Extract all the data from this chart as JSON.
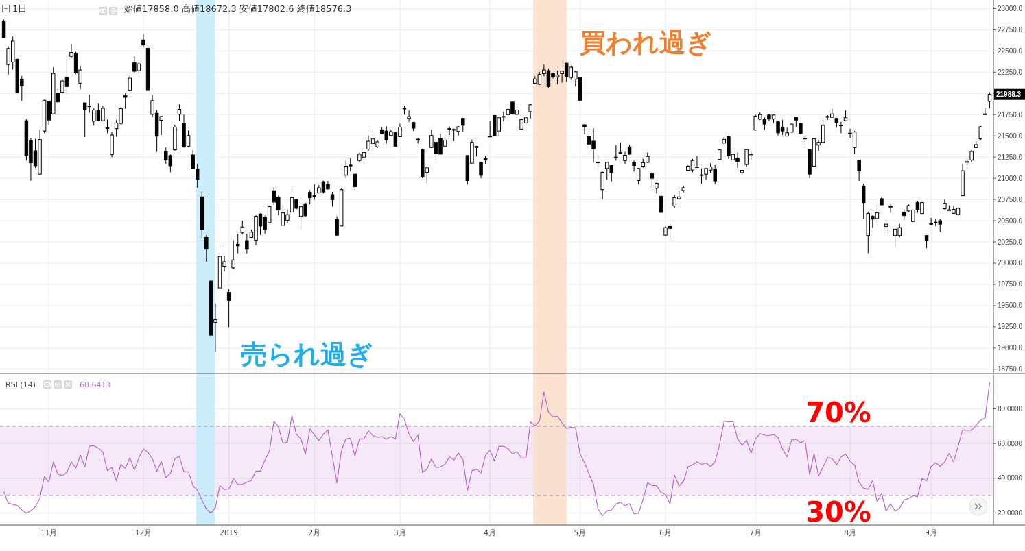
{
  "chart_data": [
    {
      "type": "candlestick",
      "title": "1日",
      "subtitle": "始値17858.0 高値18672.3 安値17802.6 終値18576.3",
      "categories": [
        null,
        null,
        null,
        null,
        null,
        null,
        null,
        null,
        null,
        null,
        null,
        null,
        null,
        null,
        null,
        null,
        null,
        null,
        null,
        null,
        null,
        null,
        null,
        null,
        null,
        null,
        null,
        null,
        null,
        null,
        null,
        null,
        null,
        null,
        null,
        null,
        null,
        null,
        null,
        null,
        null,
        null,
        null,
        null,
        null,
        null,
        null,
        null,
        null,
        null,
        null,
        null,
        null,
        null,
        null,
        null,
        null,
        null,
        null,
        null,
        null,
        null,
        null,
        null,
        null,
        null,
        null,
        null,
        null,
        null,
        null,
        null,
        null,
        null,
        null,
        null,
        null,
        null,
        null,
        null,
        null,
        null,
        null,
        null,
        null,
        null,
        null,
        null,
        null,
        null,
        null,
        null,
        null,
        null,
        null,
        null,
        null,
        null,
        null,
        null,
        null,
        null,
        null,
        null,
        null,
        null,
        null,
        null,
        null,
        null,
        null,
        null,
        null,
        null,
        null,
        null,
        null,
        null,
        null,
        null,
        null,
        null,
        null,
        null,
        null,
        null,
        null,
        null,
        null,
        null,
        null,
        null,
        null,
        null,
        null,
        null,
        null,
        null,
        null,
        null,
        null,
        null,
        null,
        null,
        null,
        null,
        null,
        null,
        null,
        null,
        null,
        null,
        null,
        null,
        null,
        null,
        null,
        null,
        null,
        null,
        null,
        null,
        null,
        null,
        null,
        null,
        null,
        null,
        null,
        null,
        null,
        null,
        null,
        null,
        null,
        null,
        null,
        null,
        null,
        null,
        null,
        null,
        null,
        null,
        null,
        null,
        null,
        null,
        null,
        null,
        null,
        null,
        null,
        null,
        null,
        null,
        null,
        null,
        null,
        null,
        null,
        null,
        null,
        null,
        null,
        null,
        null,
        null,
        null,
        null,
        null,
        null,
        null,
        null,
        null,
        null,
        null,
        null,
        null,
        null
      ],
      "ohlc": [
        [
          22850,
          22870,
          22656,
          22660
        ],
        [
          22340,
          22554,
          22222,
          22528
        ],
        [
          22369,
          22670,
          22281,
          22616
        ],
        [
          22402,
          22410,
          22000,
          22008
        ],
        [
          22166,
          22206,
          21911,
          22088
        ],
        [
          21678,
          21697,
          21209,
          21271
        ],
        [
          21442,
          21477,
          20973,
          21182
        ],
        [
          21324,
          21464,
          21123,
          21147
        ],
        [
          21048,
          21571,
          21040,
          21456
        ],
        [
          21557,
          21925,
          21531,
          21919
        ],
        [
          21906,
          21911,
          21630,
          21686
        ],
        [
          21758,
          22308,
          21750,
          22235
        ],
        [
          22000,
          22053,
          21874,
          21900
        ],
        [
          22013,
          22160,
          22000,
          22147
        ],
        [
          22193,
          22442,
          22000,
          22080
        ],
        [
          22436,
          22584,
          22423,
          22482
        ],
        [
          22469,
          22490,
          22227,
          22241
        ],
        [
          22120,
          22327,
          22048,
          22276
        ],
        [
          21887,
          21892,
          21485,
          21812
        ],
        [
          21852,
          21986,
          21772,
          21845
        ],
        [
          21673,
          21825,
          21619,
          21804
        ],
        [
          21804,
          21879,
          21673,
          21678
        ],
        [
          21678,
          21852,
          21670,
          21825
        ],
        [
          21594,
          21691,
          21531,
          21590
        ],
        [
          21281,
          21544,
          21249,
          21509
        ],
        [
          21584,
          21686,
          21490,
          21651
        ],
        [
          21646,
          21839,
          21630,
          21820
        ],
        [
          21973,
          22000,
          21817,
          21954
        ],
        [
          22032,
          22214,
          22026,
          22179
        ],
        [
          22361,
          22436,
          22246,
          22260
        ],
        [
          22268,
          22367,
          22233,
          22348
        ],
        [
          22629,
          22696,
          22549,
          22570
        ],
        [
          22530,
          22576,
          22026,
          22034
        ],
        [
          21753,
          21981,
          21718,
          21914
        ],
        [
          21766,
          21804,
          21311,
          21496
        ],
        [
          21683,
          21732,
          21509,
          21728
        ],
        [
          21316,
          21362,
          21169,
          21217
        ],
        [
          21268,
          21281,
          21070,
          21147
        ],
        [
          21335,
          21632,
          21322,
          21603
        ],
        [
          21753,
          21871,
          21678,
          21812
        ],
        [
          21643,
          21750,
          21362,
          21367
        ],
        [
          21378,
          21563,
          21365,
          21504
        ],
        [
          21276,
          21330,
          21107,
          21110
        ],
        [
          21107,
          21169,
          20887,
          20987
        ],
        [
          20780,
          20842,
          20290,
          20392
        ],
        [
          20303,
          20330,
          20016,
          20164
        ],
        [
          19789,
          19795,
          19124,
          19151
        ],
        [
          19301,
          19526,
          18958,
          19333
        ],
        [
          19708,
          20212,
          19708,
          20078
        ],
        [
          19963,
          20089,
          19901,
          20016
        ],
        [
          19655,
          19695,
          19247,
          19561
        ],
        [
          19944,
          20271,
          19928,
          20038
        ],
        [
          20223,
          20346,
          20116,
          20204
        ],
        [
          20357,
          20499,
          20340,
          20426
        ],
        [
          20266,
          20346,
          20113,
          20164
        ],
        [
          20303,
          20392,
          20298,
          20365
        ],
        [
          20271,
          20566,
          20212,
          20552
        ],
        [
          20579,
          20587,
          20330,
          20437
        ],
        [
          20544,
          20560,
          20346,
          20400
        ],
        [
          20477,
          20673,
          20472,
          20665
        ],
        [
          20853,
          20893,
          20686,
          20719
        ],
        [
          20772,
          20794,
          20566,
          20625
        ],
        [
          20445,
          20686,
          20445,
          20593
        ],
        [
          20504,
          20633,
          20472,
          20571
        ],
        [
          20601,
          20847,
          20598,
          20772
        ],
        [
          20748,
          20759,
          20633,
          20646
        ],
        [
          20552,
          20705,
          20418,
          20665
        ],
        [
          20700,
          20713,
          20544,
          20558
        ],
        [
          20834,
          20861,
          20694,
          20772
        ],
        [
          20790,
          20928,
          20748,
          20794
        ],
        [
          20828,
          20920,
          20820,
          20887
        ],
        [
          20960,
          20973,
          20820,
          20839
        ],
        [
          20928,
          20970,
          20866,
          20874
        ],
        [
          20807,
          20839,
          20668,
          20748
        ],
        [
          20512,
          20552,
          20320,
          20330
        ],
        [
          20437,
          20882,
          20437,
          20866
        ],
        [
          21035,
          21209,
          21000,
          21142
        ],
        [
          21155,
          21236,
          21080,
          21145
        ],
        [
          21048,
          21048,
          20861,
          20901
        ],
        [
          21209,
          21300,
          21196,
          21284
        ],
        [
          21249,
          21338,
          21222,
          21303
        ],
        [
          21343,
          21504,
          21316,
          21437
        ],
        [
          21410,
          21557,
          21322,
          21464
        ],
        [
          21370,
          21450,
          21356,
          21429
        ],
        [
          21571,
          21598,
          21517,
          21525
        ],
        [
          21557,
          21611,
          21410,
          21450
        ],
        [
          21504,
          21571,
          21499,
          21549
        ],
        [
          21536,
          21544,
          21370,
          21378
        ],
        [
          21490,
          21643,
          21485,
          21603
        ],
        [
          21825,
          21857,
          21750,
          21817
        ],
        [
          21705,
          21799,
          21665,
          21726
        ],
        [
          21657,
          21665,
          21557,
          21590
        ],
        [
          21460,
          21477,
          21410,
          21458
        ],
        [
          21338,
          21349,
          21000,
          21021
        ],
        [
          21070,
          21142,
          20941,
          21123
        ],
        [
          21362,
          21571,
          21356,
          21504
        ],
        [
          21423,
          21477,
          21209,
          21295
        ],
        [
          21472,
          21525,
          21284,
          21284
        ],
        [
          21378,
          21525,
          21375,
          21450
        ],
        [
          21585,
          21611,
          21509,
          21584
        ],
        [
          21571,
          21584,
          21437,
          21575
        ],
        [
          21552,
          21617,
          21504,
          21606
        ],
        [
          21705,
          21713,
          21552,
          21624
        ],
        [
          21268,
          21276,
          20928,
          20973
        ],
        [
          21177,
          21456,
          21177,
          21423
        ],
        [
          21362,
          21383,
          21257,
          21375
        ],
        [
          21188,
          21196,
          21000,
          21035
        ],
        [
          21230,
          21263,
          21169,
          21214
        ],
        [
          21490,
          21678,
          21485,
          21495
        ],
        [
          21740,
          21745,
          21499,
          21504
        ],
        [
          21557,
          21718,
          21499,
          21713
        ],
        [
          21725,
          21785,
          21670,
          21728
        ],
        [
          21750,
          21831,
          21740,
          21812
        ],
        [
          21898,
          21900,
          21750,
          21758
        ],
        [
          21753,
          21817,
          21705,
          21804
        ],
        [
          21579,
          21697,
          21579,
          21691
        ],
        [
          21651,
          21718,
          21632,
          21713
        ],
        [
          21785,
          21874,
          21705,
          21866
        ],
        [
          22120,
          22201,
          22107,
          22168
        ],
        [
          22107,
          22254,
          22099,
          22222
        ],
        [
          22233,
          22340,
          22201,
          22276
        ],
        [
          22268,
          22294,
          22067,
          22080
        ],
        [
          22235,
          22241,
          22174,
          22195
        ],
        [
          22195,
          22268,
          22107,
          22214
        ],
        [
          22233,
          22268,
          22126,
          22262
        ],
        [
          22356,
          22361,
          22134,
          22201
        ],
        [
          22187,
          22329,
          22160,
          22308
        ],
        [
          22168,
          22268,
          22080,
          22254
        ],
        [
          22185,
          22195,
          21879,
          21919
        ],
        [
          21630,
          21638,
          21517,
          21603
        ],
        [
          21490,
          21557,
          21322,
          21402
        ],
        [
          21437,
          21590,
          21182,
          21348
        ],
        [
          21190,
          21276,
          21134,
          21188
        ],
        [
          20866,
          21080,
          20753,
          21070
        ],
        [
          21115,
          21196,
          20981,
          21188
        ],
        [
          21150,
          21155,
          20962,
          21067
        ],
        [
          21250,
          21391,
          21209,
          21248
        ],
        [
          21303,
          21423,
          21295,
          21300
        ],
        [
          21209,
          21311,
          21169,
          21271
        ],
        [
          21370,
          21397,
          21276,
          21284
        ],
        [
          21188,
          21209,
          21080,
          21150
        ],
        [
          20973,
          21123,
          20928,
          21115
        ],
        [
          21142,
          21230,
          21123,
          21182
        ],
        [
          21188,
          21303,
          21182,
          21257
        ],
        [
          21056,
          21075,
          20887,
          21000
        ],
        [
          20882,
          20946,
          20820,
          20941
        ],
        [
          20788,
          20820,
          20587,
          20598
        ],
        [
          20330,
          20432,
          20319,
          20418
        ],
        [
          20432,
          20464,
          20298,
          20410
        ],
        [
          20673,
          20807,
          20652,
          20772
        ],
        [
          20759,
          20847,
          20748,
          20780
        ],
        [
          20855,
          20909,
          20834,
          20887
        ],
        [
          21094,
          21155,
          21088,
          21142
        ],
        [
          21097,
          21230,
          21070,
          21209
        ],
        [
          21134,
          21263,
          21130,
          21130
        ],
        [
          21040,
          21115,
          20936,
          21040
        ],
        [
          21048,
          21123,
          20981,
          21115
        ],
        [
          21096,
          21177,
          21062,
          21134
        ],
        [
          21110,
          21155,
          20928,
          20968
        ],
        [
          21222,
          21348,
          21217,
          21335
        ],
        [
          21415,
          21485,
          21391,
          21458
        ],
        [
          21490,
          21496,
          21230,
          21263
        ],
        [
          21217,
          21316,
          21209,
          21281
        ],
        [
          21236,
          21303,
          21123,
          21196
        ],
        [
          21067,
          21115,
          21035,
          21094
        ],
        [
          21161,
          21349,
          21134,
          21338
        ],
        [
          21285,
          21322,
          21209,
          21284
        ],
        [
          21568,
          21750,
          21563,
          21732
        ],
        [
          21697,
          21777,
          21686,
          21750
        ],
        [
          21691,
          21718,
          21571,
          21638
        ],
        [
          21745,
          21758,
          21678,
          21697
        ],
        [
          21697,
          21750,
          21651,
          21745
        ],
        [
          21665,
          21678,
          21504,
          21536
        ],
        [
          21603,
          21686,
          21509,
          21557
        ],
        [
          21496,
          21598,
          21496,
          21536
        ],
        [
          21544,
          21643,
          21536,
          21638
        ],
        [
          21718,
          21718,
          21603,
          21686
        ],
        [
          21646,
          21651,
          21523,
          21530
        ],
        [
          21472,
          21490,
          21383,
          21472
        ],
        [
          21338,
          21343,
          21000,
          21048
        ],
        [
          21142,
          21477,
          21128,
          21464
        ],
        [
          21391,
          21450,
          21322,
          21423
        ],
        [
          21423,
          21686,
          21415,
          21624
        ],
        [
          21728,
          21745,
          21686,
          21722
        ],
        [
          21718,
          21825,
          21713,
          21758
        ],
        [
          21705,
          21713,
          21598,
          21657
        ],
        [
          21626,
          21665,
          21531,
          21624
        ],
        [
          21678,
          21799,
          21670,
          21713
        ],
        [
          21532,
          21584,
          21477,
          21530
        ],
        [
          21362,
          21557,
          21289,
          21544
        ],
        [
          21214,
          21217,
          20968,
          21088
        ],
        [
          20909,
          20936,
          20518,
          20713
        ],
        [
          20325,
          20606,
          20116,
          20584
        ],
        [
          20552,
          20566,
          20418,
          20518
        ],
        [
          20526,
          20686,
          20472,
          20593
        ],
        [
          20759,
          20780,
          20686,
          20686
        ],
        [
          20432,
          20507,
          20378,
          20459
        ],
        [
          20673,
          20694,
          20593,
          20660
        ],
        [
          20325,
          20410,
          20191,
          20400
        ],
        [
          20325,
          20464,
          20303,
          20418
        ],
        [
          20598,
          20633,
          20512,
          20560
        ],
        [
          20614,
          20694,
          20598,
          20678
        ],
        [
          20491,
          20633,
          20485,
          20625
        ],
        [
          20713,
          20732,
          20593,
          20633
        ],
        [
          20584,
          20721,
          20579,
          20713
        ],
        [
          20325,
          20330,
          20177,
          20263
        ],
        [
          20466,
          20534,
          20445,
          20464
        ],
        [
          20482,
          20518,
          20437,
          20480
        ],
        [
          20499,
          20518,
          20365,
          20459
        ],
        [
          20641,
          20748,
          20633,
          20705
        ],
        [
          20628,
          20681,
          20626,
          20626
        ],
        [
          20587,
          20676,
          20579,
          20633
        ],
        [
          20574,
          20700,
          20560,
          20646
        ],
        [
          20794,
          21169,
          20794,
          21088
        ],
        [
          21196,
          21236,
          21150,
          21196
        ],
        [
          21214,
          21330,
          21188,
          21316
        ],
        [
          21362,
          21437,
          21356,
          21397
        ],
        [
          21464,
          21617,
          21446,
          21606
        ],
        [
          21758,
          21831,
          21750,
          21755
        ],
        [
          21906,
          22013,
          21825,
          21988.3
        ]
      ],
      "ylim": [
        18700,
        23100
      ],
      "yticks": [
        {
          "value": 18750,
          "label": "18750.0"
        },
        {
          "value": 19000,
          "label": "19000.0"
        },
        {
          "value": 19250,
          "label": "19250.0"
        },
        {
          "value": 19500,
          "label": "19500.0"
        },
        {
          "value": 19750,
          "label": "19750.0"
        },
        {
          "value": 20000,
          "label": "20000.0"
        },
        {
          "value": 20250,
          "label": "20250.0"
        },
        {
          "value": 20500,
          "label": "20500.0"
        },
        {
          "value": 20750,
          "label": "20750.0"
        },
        {
          "value": 21000,
          "label": "21000.0"
        },
        {
          "value": 21250,
          "label": "21250.0"
        },
        {
          "value": 21500,
          "label": "21500.0"
        },
        {
          "value": 21750,
          "label": "21750.0"
        },
        {
          "value": 22000,
          "label": null
        },
        {
          "value": 22250,
          "label": "22250.0"
        },
        {
          "value": 22500,
          "label": "22500.0"
        },
        {
          "value": 22750,
          "label": "22750.0"
        },
        {
          "value": 23000,
          "label": "23000.0"
        }
      ],
      "grid": true,
      "tick_labels": "y",
      "annotations": [
        "売られ過ぎ",
        "買われ過ぎ",
        "21988.3"
      ]
    },
    {
      "type": "line",
      "title": "RSI (14)",
      "subtitle": "60.6413",
      "categories": [
        null,
        null,
        null,
        null,
        null,
        null,
        null,
        null,
        null,
        null,
        "11月",
        null,
        null,
        null,
        null,
        null,
        null,
        null,
        null,
        null,
        null,
        null,
        null,
        null,
        null,
        null,
        null,
        null,
        null,
        null,
        null,
        "12月",
        null,
        null,
        null,
        null,
        null,
        null,
        null,
        null,
        null,
        null,
        null,
        null,
        null,
        null,
        null,
        null,
        null,
        null,
        "2019",
        null,
        null,
        null,
        null,
        null,
        null,
        null,
        null,
        null,
        null,
        null,
        null,
        null,
        null,
        null,
        null,
        null,
        null,
        "2月",
        null,
        null,
        null,
        null,
        null,
        null,
        null,
        null,
        null,
        null,
        null,
        null,
        null,
        null,
        null,
        null,
        null,
        null,
        "3月",
        null,
        null,
        null,
        null,
        null,
        null,
        null,
        null,
        null,
        null,
        null,
        null,
        null,
        null,
        null,
        null,
        null,
        null,
        null,
        "4月",
        null,
        null,
        null,
        null,
        null,
        null,
        null,
        null,
        null,
        null,
        null,
        null,
        null,
        null,
        null,
        null,
        null,
        null,
        null,
        "5月",
        null,
        null,
        null,
        null,
        null,
        null,
        null,
        null,
        null,
        null,
        null,
        null,
        null,
        null,
        null,
        null,
        null,
        null,
        "6月",
        null,
        null,
        null,
        null,
        null,
        null,
        null,
        null,
        null,
        null,
        null,
        null,
        null,
        null,
        null,
        null,
        null,
        null,
        null,
        "7月",
        null,
        null,
        null,
        null,
        null,
        null,
        null,
        null,
        null,
        null,
        null,
        null,
        null,
        null,
        null,
        null,
        null,
        null,
        null,
        null,
        "8月",
        null,
        null,
        null,
        null,
        null,
        null,
        null,
        null,
        null,
        null,
        null,
        null,
        null,
        null,
        null,
        null,
        null,
        "9月",
        null,
        null,
        null,
        null,
        null,
        null,
        null,
        null,
        null,
        null,
        null,
        null,
        null
      ],
      "series": [
        {
          "color": "#ba68c8",
          "values": [
            32.1,
            25.5,
            24.9,
            24.2,
            21.7,
            19.8,
            21.2,
            23.6,
            28.3,
            40.9,
            37.7,
            49.4,
            42.4,
            41.5,
            43.3,
            49.4,
            45.8,
            53.3,
            46.5,
            58.4,
            58.8,
            57.4,
            55.0,
            44.3,
            46.2,
            38.5,
            48.0,
            45.6,
            51.8,
            44.7,
            51.8,
            56.9,
            55.0,
            51.2,
            44.1,
            49.7,
            40.3,
            42.8,
            51.2,
            52.6,
            43.7,
            43.7,
            35.8,
            33.0,
            27.4,
            22.1,
            19.8,
            23.0,
            35.8,
            33.4,
            33.8,
            39.6,
            36.4,
            36.4,
            37.7,
            38.7,
            44.1,
            44.1,
            50.5,
            55.6,
            72.9,
            69.7,
            60.1,
            60.8,
            76.1,
            65.4,
            62.8,
            53.8,
            68.4,
            65.0,
            61.8,
            65.4,
            67.9,
            52.6,
            37.3,
            55.9,
            62.7,
            63.1,
            52.7,
            62.7,
            62.7,
            67.2,
            64.6,
            63.6,
            64.0,
            62.5,
            64.0,
            62.7,
            77.2,
            73.8,
            65.5,
            61.2,
            64.8,
            43.3,
            45.2,
            51.2,
            46.2,
            46.5,
            48.0,
            52.4,
            50.5,
            54.6,
            50.5,
            33.0,
            44.3,
            45.2,
            43.0,
            53.1,
            56.3,
            49.9,
            58.4,
            58.4,
            57.1,
            54.1,
            55.2,
            51.6,
            51.6,
            72.5,
            70.2,
            72.9,
            89.8,
            78.1,
            75.3,
            75.7,
            71.9,
            68.7,
            69.3,
            69.1,
            54.1,
            49.0,
            42.4,
            36.4,
            22.3,
            18.3,
            21.2,
            21.7,
            25.1,
            26.1,
            24.2,
            25.3,
            19.5,
            19.8,
            27.7,
            37.3,
            35.8,
            35.8,
            31.7,
            30.6,
            25.3,
            41.8,
            35.5,
            38.1,
            46.5,
            47.7,
            49.5,
            48.0,
            48.8,
            46.7,
            49.4,
            59.3,
            72.9,
            72.5,
            72.7,
            62.7,
            58.9,
            62.0,
            54.4,
            62.7,
            65.7,
            64.8,
            64.6,
            65.2,
            63.5,
            56.9,
            52.2,
            62.1,
            62.5,
            60.3,
            61.8,
            42.0,
            54.2,
            41.3,
            46.5,
            51.8,
            51.4,
            47.7,
            52.4,
            53.9,
            49.9,
            47.5,
            37.7,
            34.3,
            33.6,
            38.6,
            26.4,
            31.1,
            21.2,
            25.1,
            21.0,
            22.7,
            27.4,
            28.3,
            29.8,
            29.4,
            39.8,
            38.5,
            46.7,
            49.0,
            46.7,
            49.4,
            54.2,
            49.4,
            58.4,
            67.8,
            67.6,
            67.6,
            70.6,
            73.4,
            74.7,
            95.0
          ]
        }
      ],
      "ylim": [
        13,
        100
      ],
      "yticks": [
        {
          "value": 20,
          "label": "20.0000"
        },
        {
          "value": 40,
          "label": "40.0000"
        },
        {
          "value": 60,
          "label": "60.0000"
        },
        {
          "value": 80,
          "label": "80.0000"
        }
      ],
      "grid": true,
      "bands": [
        {
          "axis": "y",
          "from": 30,
          "to": 70,
          "color": "#9c27b0"
        }
      ],
      "ref_lines": [
        {
          "axis": "y",
          "value": 70,
          "label": "70%",
          "color": "#9a8a9a",
          "line_style": "dashed"
        },
        {
          "axis": "y",
          "value": 30,
          "label": "30%",
          "color": "#9a8a9a",
          "line_style": "dashed"
        }
      ]
    }
  ]
}
